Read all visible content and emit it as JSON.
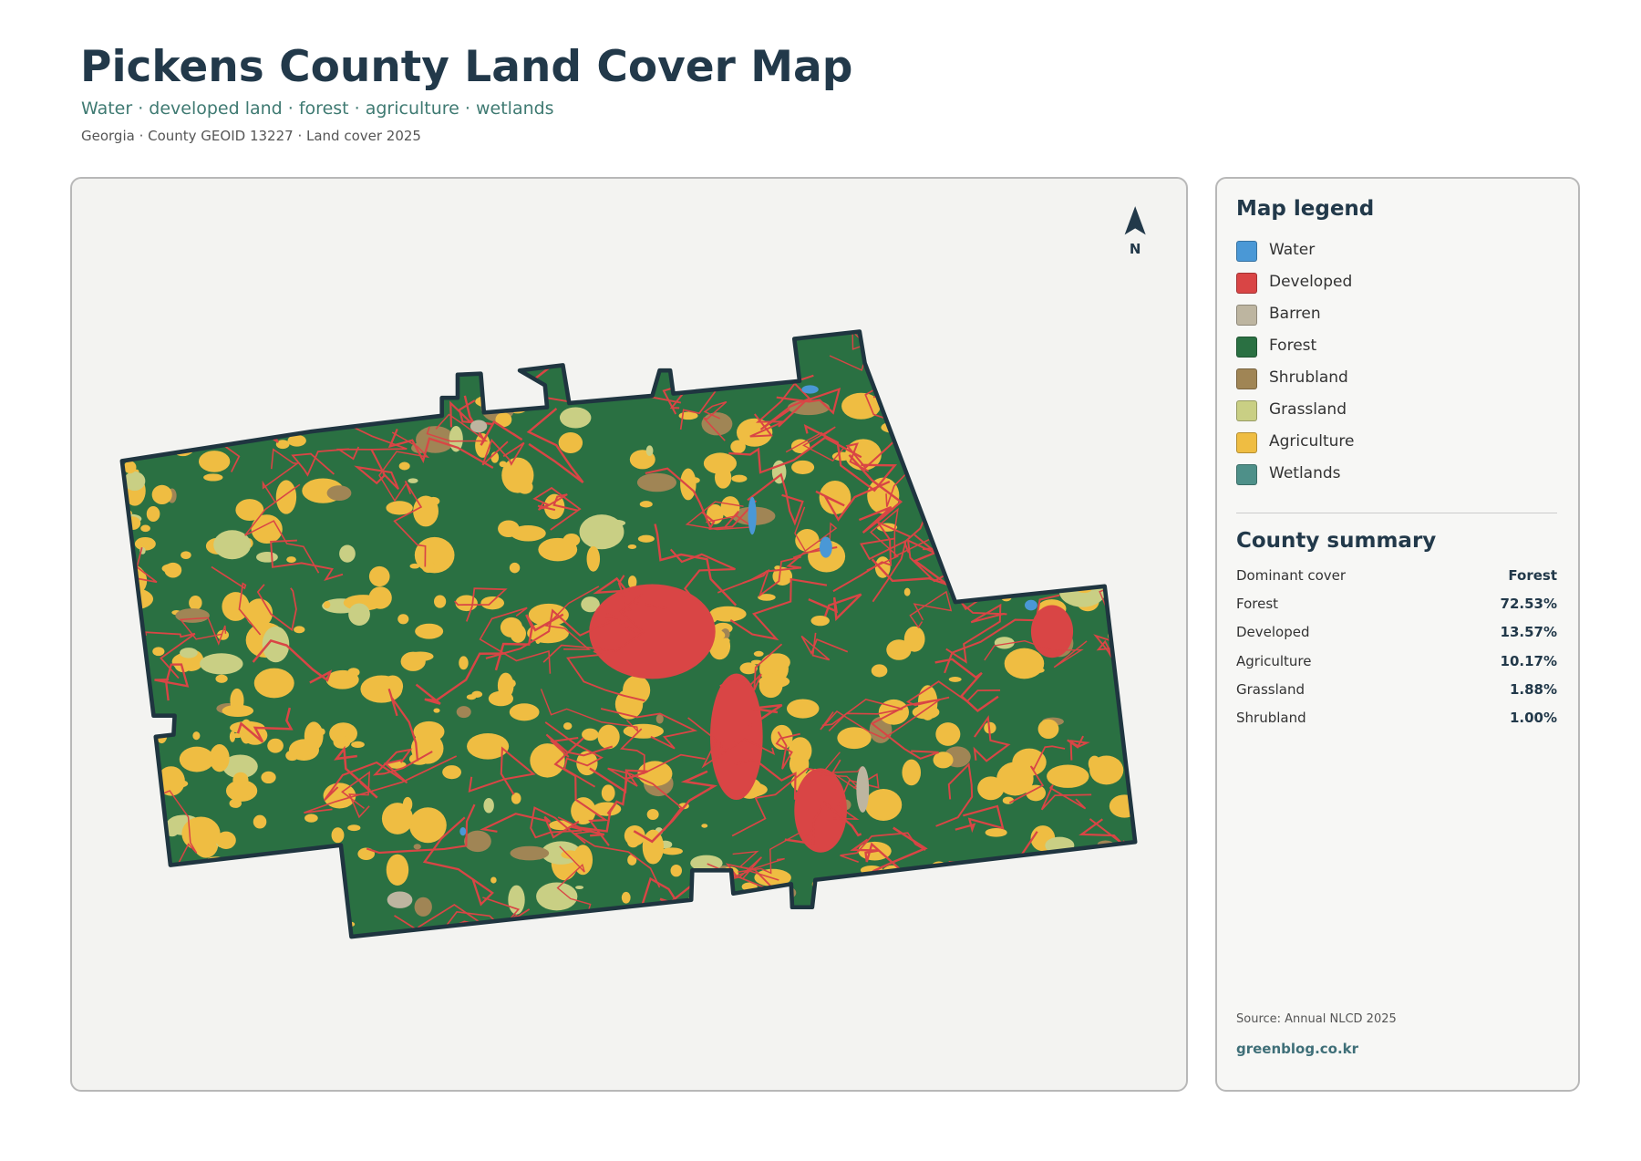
{
  "header": {
    "title": "Pickens County Land Cover Map",
    "subtitle": "Water · developed land · forest · agriculture · wetlands",
    "meta": "Georgia · County GEOID 13227 · Land cover 2025"
  },
  "map": {
    "north": "N"
  },
  "legend": {
    "title": "Map legend",
    "items": [
      {
        "label": "Water",
        "color": "#4a98d6"
      },
      {
        "label": "Developed",
        "color": "#d94545"
      },
      {
        "label": "Barren",
        "color": "#bdb5a0"
      },
      {
        "label": "Forest",
        "color": "#2a7042"
      },
      {
        "label": "Shrubland",
        "color": "#a08555"
      },
      {
        "label": "Grassland",
        "color": "#c9cf84"
      },
      {
        "label": "Agriculture",
        "color": "#efbd42"
      },
      {
        "label": "Wetlands",
        "color": "#4e9089"
      }
    ]
  },
  "summary": {
    "title": "County summary",
    "rows": [
      {
        "label": "Dominant cover",
        "value": "Forest"
      },
      {
        "label": "Forest",
        "value": "72.53%"
      },
      {
        "label": "Developed",
        "value": "13.57%"
      },
      {
        "label": "Agriculture",
        "value": "10.17%"
      },
      {
        "label": "Grassland",
        "value": "1.88%"
      },
      {
        "label": "Shrubland",
        "value": "1.00%"
      }
    ]
  },
  "footer": {
    "source": "Source: Annual NLCD 2025",
    "site": "greenblog.co.kr"
  }
}
